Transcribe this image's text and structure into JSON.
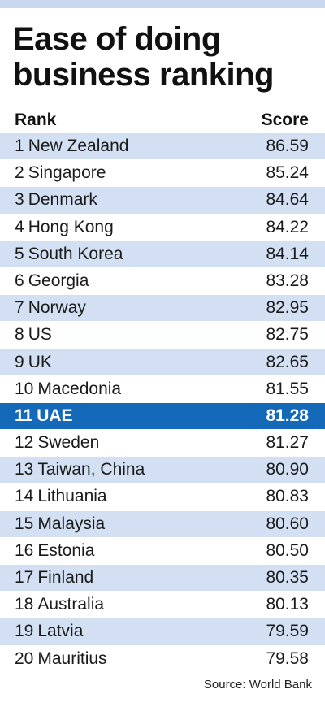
{
  "header": {
    "title": "Ease of doing business ranking",
    "rank_label": "Rank",
    "score_label": "Score"
  },
  "source": "Source: World Bank",
  "colors": {
    "band": "#d3e0f3",
    "highlight": "#1469b8",
    "top_bar": "#c9d8ef"
  },
  "chart_data": {
    "type": "table",
    "title": "Ease of doing business ranking",
    "columns": [
      "Rank",
      "Score"
    ],
    "highlight_rank": 11,
    "rows": [
      {
        "rank": "1",
        "country": "New Zealand",
        "score": "86.59"
      },
      {
        "rank": "2",
        "country": "Singapore",
        "score": "85.24"
      },
      {
        "rank": "3",
        "country": "Denmark",
        "score": "84.64"
      },
      {
        "rank": "4",
        "country": "Hong Kong",
        "score": "84.22"
      },
      {
        "rank": "5",
        "country": "South Korea",
        "score": "84.14"
      },
      {
        "rank": "6",
        "country": "Georgia",
        "score": "83.28"
      },
      {
        "rank": "7",
        "country": "Norway",
        "score": "82.95"
      },
      {
        "rank": "8",
        "country": "US",
        "score": "82.75"
      },
      {
        "rank": "9",
        "country": "UK",
        "score": "82.65"
      },
      {
        "rank": "10",
        "country": "Macedonia",
        "score": "81.55"
      },
      {
        "rank": "11",
        "country": "UAE",
        "score": "81.28"
      },
      {
        "rank": "12",
        "country": "Sweden",
        "score": "81.27"
      },
      {
        "rank": "13",
        "country": "Taiwan, China",
        "score": "80.90"
      },
      {
        "rank": "14",
        "country": "Lithuania",
        "score": "80.83"
      },
      {
        "rank": "15",
        "country": "Malaysia",
        "score": "80.60"
      },
      {
        "rank": "16",
        "country": "Estonia",
        "score": "80.50"
      },
      {
        "rank": "17",
        "country": "Finland",
        "score": "80.35"
      },
      {
        "rank": "18",
        "country": "Australia",
        "score": "80.13"
      },
      {
        "rank": "19",
        "country": "Latvia",
        "score": "79.59"
      },
      {
        "rank": "20",
        "country": "Mauritius",
        "score": "79.58"
      }
    ]
  }
}
